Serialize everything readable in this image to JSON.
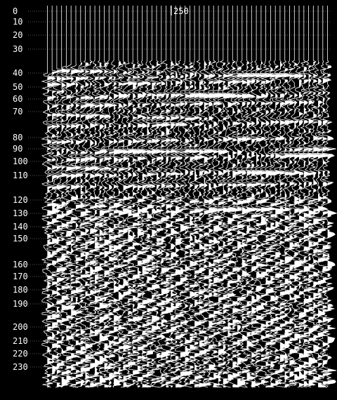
{
  "chart_data": {
    "type": "seismic-wiggle",
    "title": "",
    "xlabel": "",
    "ylabel": "",
    "x_tick_labels": [
      {
        "value": 250,
        "label": "250"
      }
    ],
    "y_tick_labels": [
      {
        "value": 0,
        "label": "0"
      },
      {
        "value": 10,
        "label": "10"
      },
      {
        "value": 20,
        "label": "20"
      },
      {
        "value": 30,
        "label": "30"
      },
      {
        "value": 40,
        "label": "40"
      },
      {
        "value": 50,
        "label": "50"
      },
      {
        "value": 60,
        "label": "60"
      },
      {
        "value": 70,
        "label": "70"
      },
      {
        "value": 80,
        "label": "80"
      },
      {
        "value": 90,
        "label": "90"
      },
      {
        "value": 100,
        "label": "100"
      },
      {
        "value": 110,
        "label": "110"
      },
      {
        "value": 120,
        "label": "120"
      },
      {
        "value": 130,
        "label": "130"
      },
      {
        "value": 140,
        "label": "140"
      },
      {
        "value": 150,
        "label": "150"
      },
      {
        "value": 160,
        "label": "160"
      },
      {
        "value": 170,
        "label": "170"
      },
      {
        "value": 180,
        "label": "180"
      },
      {
        "value": 190,
        "label": "190"
      },
      {
        "value": 200,
        "label": "200"
      },
      {
        "value": 210,
        "label": "210"
      },
      {
        "value": 220,
        "label": "220"
      },
      {
        "value": 230,
        "label": "230"
      }
    ],
    "y_orientation": "downward",
    "trace_count": 60,
    "reflector_depths": [
      37,
      41,
      45,
      50,
      55,
      62,
      69,
      74,
      80,
      86,
      90,
      95,
      101,
      107,
      113,
      120,
      126
    ],
    "grid": "dotted horizontal lines at each y tick",
    "colors": {
      "background": "#000000",
      "traces": "#ffffff",
      "fill": "#ffffff"
    }
  }
}
